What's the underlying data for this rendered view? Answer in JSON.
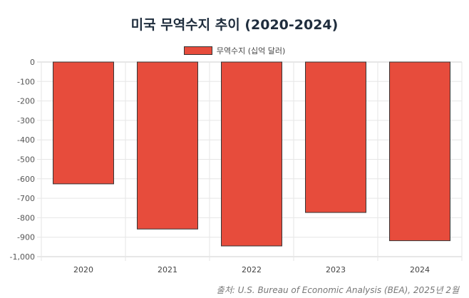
{
  "chart_data": {
    "type": "bar",
    "title": "미국 무역수지 추이 (2020-2024)",
    "categories": [
      "2020",
      "2021",
      "2022",
      "2023",
      "2024"
    ],
    "series": [
      {
        "name": "무역수지 (십억 달러)",
        "values": [
          -626,
          -858,
          -945,
          -773,
          -918
        ]
      }
    ],
    "ylim": [
      -1000,
      0
    ],
    "yticks": [
      "0",
      "-100",
      "-200",
      "-300",
      "-400",
      "-500",
      "-600",
      "-700",
      "-800",
      "-900",
      "-1,000"
    ],
    "xlabel": "",
    "ylabel": "",
    "grid": true,
    "legend_position": "top-center",
    "bar_color": "#e74c3c",
    "bar_border_color": "#333333"
  },
  "source": "출처: U.S. Bureau of Economic Analysis (BEA), 2025년 2월"
}
